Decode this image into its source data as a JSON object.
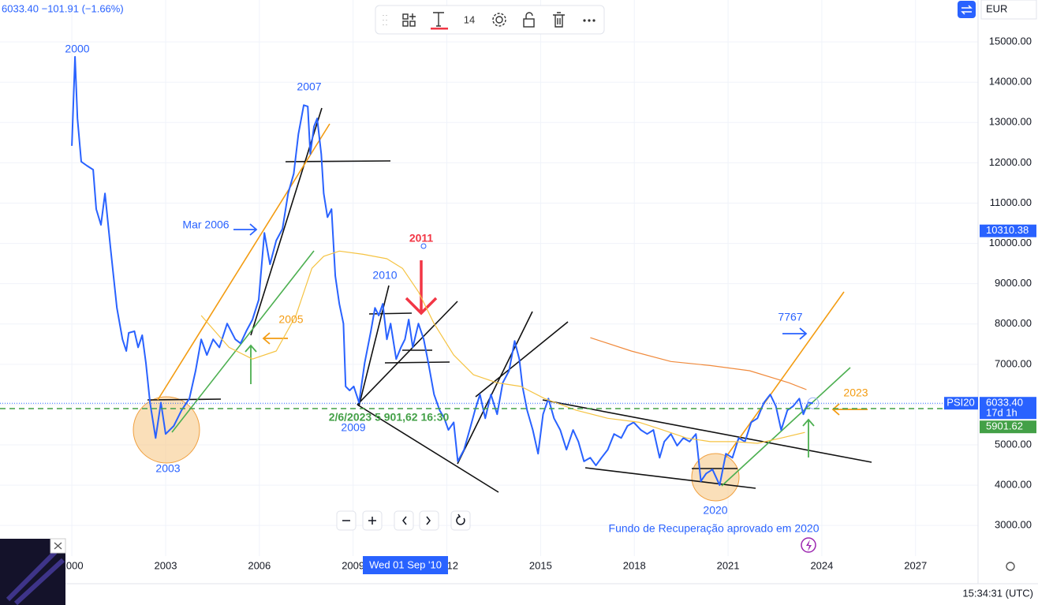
{
  "toolbar": {
    "font_size": "14"
  },
  "status": {
    "time": "15:34:31 (UTC)"
  },
  "chart_data": {
    "type": "line",
    "header": "6033.40  −101.91 (−1.66%)",
    "currency": "EUR",
    "crosshair_label": "Wed 01 Sep '10",
    "xlim": [
      1997.7,
      2029.0
    ],
    "ylim": [
      2240,
      16040
    ],
    "xticks": [
      2000,
      2003,
      2006,
      2009,
      2012,
      2015,
      2018,
      2021,
      2024,
      2027
    ],
    "yticks": [
      {
        "value": 3000,
        "label": "3000.00"
      },
      {
        "value": 4000,
        "label": "4000.00"
      },
      {
        "value": 5000,
        "label": "5000.00"
      },
      {
        "value": 6000,
        "label": "6000.00"
      },
      {
        "value": 7000,
        "label": "7000.00"
      },
      {
        "value": 8000,
        "label": "8000.00"
      },
      {
        "value": 9000,
        "label": "9000.00"
      },
      {
        "value": 10000,
        "label": "10000.00"
      },
      {
        "value": 11000,
        "label": "11000.00"
      },
      {
        "value": 12000,
        "label": "12000.00"
      },
      {
        "value": 13000,
        "label": "13000.00"
      },
      {
        "value": 14000,
        "label": "14000.00"
      },
      {
        "value": 15000,
        "label": "15000.00"
      }
    ],
    "grid": true,
    "series": [
      {
        "name": "PSI20",
        "color": "#2962ff",
        "x": [
          2000.0,
          2000.1,
          2000.18,
          2000.3,
          2000.48,
          2000.68,
          2000.78,
          2000.93,
          2001.06,
          2001.24,
          2001.44,
          2001.62,
          2001.74,
          2001.82,
          2002.0,
          2002.12,
          2002.25,
          2002.37,
          2002.5,
          2002.68,
          2002.85,
          2003.0,
          2003.26,
          2003.51,
          2003.76,
          2003.96,
          2004.14,
          2004.32,
          2004.52,
          2004.72,
          2004.97,
          2005.23,
          2005.4,
          2005.58,
          2005.78,
          2005.98,
          2006.16,
          2006.34,
          2006.54,
          2006.74,
          2006.92,
          2007.1,
          2007.25,
          2007.42,
          2007.55,
          2007.63,
          2007.75,
          2007.85,
          2007.98,
          2008.06,
          2008.18,
          2008.31,
          2008.43,
          2008.56,
          2008.69,
          2008.76,
          2008.89,
          2009.02,
          2009.19,
          2009.37,
          2009.57,
          2009.7,
          2009.82,
          2009.95,
          2010.08,
          2010.2,
          2010.38,
          2010.53,
          2010.66,
          2010.78,
          2010.91,
          2011.09,
          2011.26,
          2011.41,
          2011.59,
          2011.77,
          2011.92,
          2012.05,
          2012.22,
          2012.35,
          2012.55,
          2012.73,
          2012.9,
          2013.06,
          2013.23,
          2013.41,
          2013.61,
          2013.79,
          2013.99,
          2014.17,
          2014.32,
          2014.42,
          2014.57,
          2014.75,
          2014.92,
          2015.08,
          2015.25,
          2015.43,
          2015.63,
          2015.83,
          2016.04,
          2016.21,
          2016.39,
          2016.59,
          2016.77,
          2016.95,
          2017.15,
          2017.35,
          2017.58,
          2017.78,
          2017.98,
          2018.21,
          2018.41,
          2018.61,
          2018.81,
          2018.96,
          2019.17,
          2019.37,
          2019.57,
          2019.77,
          2019.97,
          2020.13,
          2020.3,
          2020.5,
          2020.73,
          2020.93,
          2021.14,
          2021.34,
          2021.54,
          2021.74,
          2021.94,
          2022.15,
          2022.35,
          2022.53,
          2022.7,
          2022.9,
          2023.08,
          2023.28,
          2023.41,
          2023.56,
          2023.72
        ],
        "values": [
          12420,
          14630,
          13100,
          12030,
          11930,
          11830,
          10850,
          10460,
          11240,
          9870,
          8400,
          7620,
          7330,
          7780,
          7820,
          7420,
          7720,
          7030,
          6050,
          5170,
          6050,
          5270,
          5470,
          5860,
          6150,
          6840,
          7620,
          7230,
          7620,
          7420,
          8010,
          7620,
          7520,
          7820,
          8110,
          8600,
          10260,
          9480,
          10070,
          10360,
          11240,
          11730,
          12710,
          13430,
          13400,
          12220,
          12900,
          13100,
          12220,
          11240,
          10650,
          10850,
          9190,
          8500,
          8010,
          6450,
          6350,
          6450,
          6050,
          7030,
          7820,
          8400,
          8210,
          8500,
          7620,
          8010,
          7130,
          7420,
          7620,
          8110,
          7420,
          8010,
          7620,
          7030,
          6250,
          5860,
          5660,
          5370,
          5560,
          4590,
          4880,
          5370,
          5860,
          6250,
          5660,
          6250,
          5760,
          6540,
          6840,
          7580,
          7130,
          6450,
          5860,
          5370,
          4780,
          5760,
          6150,
          5660,
          5370,
          4880,
          5370,
          5080,
          4590,
          4680,
          4490,
          4680,
          4880,
          5270,
          5170,
          5470,
          5560,
          5370,
          5270,
          5370,
          4680,
          5080,
          5270,
          4980,
          5170,
          5080,
          5270,
          4100,
          4290,
          4390,
          4000,
          4780,
          4680,
          5170,
          5080,
          5560,
          5660,
          6050,
          6250,
          5960,
          5370,
          5860,
          5960,
          6150,
          5760,
          6050,
          6033.4
        ]
      },
      {
        "color": "#f5c342",
        "x": [
          2004.14,
          2005.03,
          2005.78,
          2006.54,
          2007.17,
          2007.68,
          2008.06,
          2008.56,
          2009.32,
          2010.08,
          2010.58,
          2011.09,
          2011.59,
          2012.22,
          2012.85,
          2013.61,
          2014.37,
          2015.13,
          2016.14,
          2017.15,
          2018.16,
          2018.91,
          2019.67,
          2020.43,
          2021.19,
          2021.94,
          2022.7,
          2023.46
        ],
        "values": [
          8210,
          7420,
          7130,
          7330,
          8210,
          9380,
          9680,
          9810,
          9730,
          9620,
          9380,
          8800,
          8010,
          7230,
          6740,
          6540,
          6450,
          6150,
          5860,
          5660,
          5560,
          5370,
          5170,
          5080,
          5080,
          5040,
          5170,
          5310
        ]
      },
      {
        "color": "#f08a3c",
        "x": [
          2016.59,
          2017.9,
          2019.17,
          2020.43,
          2021.69,
          2022.95,
          2023.51
        ],
        "values": [
          7660,
          7330,
          7070,
          6970,
          6840,
          6540,
          6370
        ]
      }
    ],
    "price_labels": [
      {
        "value": 10310.38,
        "label": "10310.38",
        "color": "#2962ff"
      },
      {
        "value": 6033.4,
        "label": "6033.40",
        "countdown": "17d 1h",
        "color": "#2962ff"
      },
      {
        "value": 5901.62,
        "label": "5901.62",
        "color": "#43a047"
      }
    ],
    "annotations": [
      "2000",
      "2007",
      "Mar 2006",
      "2011",
      "2010",
      "2005",
      "2009",
      "2/6/2023 5 901,62 16:30",
      "2003",
      "7767",
      "2023",
      "2020",
      "Fundo de Recuperação aprovado em 2020"
    ]
  }
}
